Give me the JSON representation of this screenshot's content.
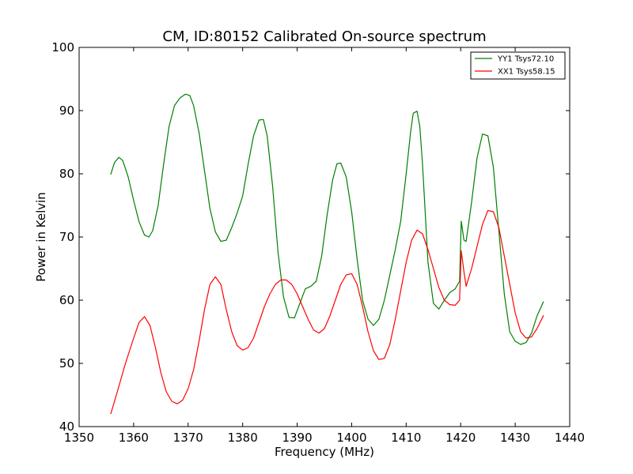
{
  "chart_data": {
    "type": "line",
    "title": "CM, ID:80152 Calibrated On-source spectrum",
    "xlabel": "Frequency (MHz)",
    "ylabel": "Power in Kelvin",
    "xlim": [
      1350,
      1440
    ],
    "ylim": [
      40,
      100
    ],
    "xticks": [
      1350,
      1360,
      1370,
      1380,
      1390,
      1400,
      1410,
      1420,
      1430,
      1440
    ],
    "yticks": [
      40,
      50,
      60,
      70,
      80,
      90,
      100
    ],
    "grid": false,
    "legend_position": "top-right",
    "series": [
      {
        "name": "YY1 Tsys72.10",
        "color": "#008000",
        "points": [
          [
            1355.8,
            79.9
          ],
          [
            1356.5,
            81.8
          ],
          [
            1357.3,
            82.6
          ],
          [
            1358.0,
            82.1
          ],
          [
            1359.0,
            79.5
          ],
          [
            1360.0,
            75.8
          ],
          [
            1361.0,
            72.4
          ],
          [
            1362.0,
            70.3
          ],
          [
            1362.8,
            70.0
          ],
          [
            1363.5,
            71.0
          ],
          [
            1364.5,
            75.0
          ],
          [
            1365.5,
            81.5
          ],
          [
            1366.5,
            87.5
          ],
          [
            1367.5,
            90.8
          ],
          [
            1368.5,
            92.0
          ],
          [
            1369.5,
            92.6
          ],
          [
            1370.3,
            92.4
          ],
          [
            1371.0,
            90.8
          ],
          [
            1372.0,
            86.5
          ],
          [
            1373.0,
            80.5
          ],
          [
            1374.0,
            74.5
          ],
          [
            1375.0,
            70.8
          ],
          [
            1376.0,
            69.3
          ],
          [
            1377.0,
            69.5
          ],
          [
            1378.0,
            71.5
          ],
          [
            1379.0,
            73.8
          ],
          [
            1380.0,
            76.5
          ],
          [
            1381.0,
            81.5
          ],
          [
            1382.0,
            86.0
          ],
          [
            1383.0,
            88.5
          ],
          [
            1383.8,
            88.6
          ],
          [
            1384.5,
            86.0
          ],
          [
            1385.5,
            78.0
          ],
          [
            1386.5,
            67.5
          ],
          [
            1387.5,
            60.5
          ],
          [
            1388.5,
            57.3
          ],
          [
            1389.5,
            57.2
          ],
          [
            1390.5,
            59.5
          ],
          [
            1391.5,
            61.8
          ],
          [
            1392.5,
            62.2
          ],
          [
            1393.5,
            63.0
          ],
          [
            1394.5,
            67.0
          ],
          [
            1395.5,
            73.5
          ],
          [
            1396.5,
            79.0
          ],
          [
            1397.3,
            81.6
          ],
          [
            1398.0,
            81.7
          ],
          [
            1399.0,
            79.5
          ],
          [
            1400.0,
            74.0
          ],
          [
            1401.0,
            66.5
          ],
          [
            1402.0,
            60.0
          ],
          [
            1403.0,
            57.0
          ],
          [
            1404.0,
            56.0
          ],
          [
            1405.0,
            57.0
          ],
          [
            1406.0,
            60.0
          ],
          [
            1407.0,
            64.0
          ],
          [
            1408.0,
            68.0
          ],
          [
            1409.0,
            72.5
          ],
          [
            1410.0,
            80.0
          ],
          [
            1410.8,
            86.5
          ],
          [
            1411.3,
            89.6
          ],
          [
            1412.0,
            89.9
          ],
          [
            1412.5,
            87.5
          ],
          [
            1413.0,
            81.5
          ],
          [
            1414.0,
            66.0
          ],
          [
            1415.0,
            59.5
          ],
          [
            1416.0,
            58.6
          ],
          [
            1417.0,
            60.0
          ],
          [
            1418.0,
            61.2
          ],
          [
            1419.0,
            61.8
          ],
          [
            1419.8,
            63.0
          ],
          [
            1420.1,
            72.5
          ],
          [
            1420.6,
            69.5
          ],
          [
            1421.0,
            69.3
          ],
          [
            1422.0,
            75.5
          ],
          [
            1423.0,
            82.5
          ],
          [
            1424.0,
            86.3
          ],
          [
            1425.0,
            86.0
          ],
          [
            1426.0,
            81.0
          ],
          [
            1427.0,
            71.0
          ],
          [
            1428.0,
            61.0
          ],
          [
            1429.0,
            55.0
          ],
          [
            1430.0,
            53.5
          ],
          [
            1431.0,
            53.0
          ],
          [
            1432.0,
            53.3
          ],
          [
            1433.0,
            54.8
          ],
          [
            1434.0,
            57.5
          ],
          [
            1435.2,
            59.8
          ]
        ]
      },
      {
        "name": "XX1 Tsys58.15",
        "color": "#ff0000",
        "points": [
          [
            1355.8,
            42.0
          ],
          [
            1357.0,
            45.5
          ],
          [
            1358.5,
            50.0
          ],
          [
            1360.0,
            54.0
          ],
          [
            1361.0,
            56.5
          ],
          [
            1362.0,
            57.4
          ],
          [
            1363.0,
            56.0
          ],
          [
            1364.0,
            52.5
          ],
          [
            1365.0,
            48.5
          ],
          [
            1366.0,
            45.5
          ],
          [
            1367.0,
            44.0
          ],
          [
            1368.0,
            43.6
          ],
          [
            1369.0,
            44.2
          ],
          [
            1370.0,
            46.0
          ],
          [
            1371.0,
            49.0
          ],
          [
            1372.0,
            53.5
          ],
          [
            1373.0,
            58.5
          ],
          [
            1374.0,
            62.5
          ],
          [
            1375.0,
            63.7
          ],
          [
            1376.0,
            62.5
          ],
          [
            1377.0,
            58.5
          ],
          [
            1378.0,
            55.0
          ],
          [
            1379.0,
            52.8
          ],
          [
            1380.0,
            52.1
          ],
          [
            1381.0,
            52.5
          ],
          [
            1382.0,
            54.0
          ],
          [
            1383.0,
            56.5
          ],
          [
            1384.0,
            59.0
          ],
          [
            1385.0,
            61.0
          ],
          [
            1386.0,
            62.5
          ],
          [
            1387.0,
            63.2
          ],
          [
            1388.0,
            63.2
          ],
          [
            1389.0,
            62.5
          ],
          [
            1390.0,
            61.0
          ],
          [
            1391.0,
            59.0
          ],
          [
            1392.0,
            57.0
          ],
          [
            1393.0,
            55.3
          ],
          [
            1394.0,
            54.8
          ],
          [
            1395.0,
            55.5
          ],
          [
            1396.0,
            57.5
          ],
          [
            1397.0,
            60.0
          ],
          [
            1398.0,
            62.5
          ],
          [
            1399.0,
            64.0
          ],
          [
            1400.0,
            64.2
          ],
          [
            1401.0,
            62.5
          ],
          [
            1402.0,
            59.0
          ],
          [
            1403.0,
            55.0
          ],
          [
            1404.0,
            52.0
          ],
          [
            1405.0,
            50.6
          ],
          [
            1406.0,
            50.8
          ],
          [
            1407.0,
            53.0
          ],
          [
            1408.0,
            57.0
          ],
          [
            1409.0,
            61.5
          ],
          [
            1410.0,
            66.0
          ],
          [
            1411.0,
            69.5
          ],
          [
            1412.0,
            71.1
          ],
          [
            1413.0,
            70.5
          ],
          [
            1414.0,
            68.0
          ],
          [
            1415.0,
            65.0
          ],
          [
            1416.0,
            62.0
          ],
          [
            1417.0,
            60.0
          ],
          [
            1418.0,
            59.3
          ],
          [
            1419.0,
            59.2
          ],
          [
            1419.8,
            60.0
          ],
          [
            1420.1,
            67.8
          ],
          [
            1420.6,
            64.5
          ],
          [
            1421.0,
            62.2
          ],
          [
            1422.0,
            65.0
          ],
          [
            1423.0,
            68.5
          ],
          [
            1424.0,
            72.0
          ],
          [
            1425.0,
            74.2
          ],
          [
            1426.0,
            74.0
          ],
          [
            1427.0,
            71.5
          ],
          [
            1428.0,
            67.0
          ],
          [
            1429.0,
            62.5
          ],
          [
            1430.0,
            58.0
          ],
          [
            1431.0,
            55.0
          ],
          [
            1432.0,
            54.0
          ],
          [
            1433.0,
            54.2
          ],
          [
            1434.0,
            55.5
          ],
          [
            1435.2,
            57.6
          ]
        ]
      }
    ]
  }
}
